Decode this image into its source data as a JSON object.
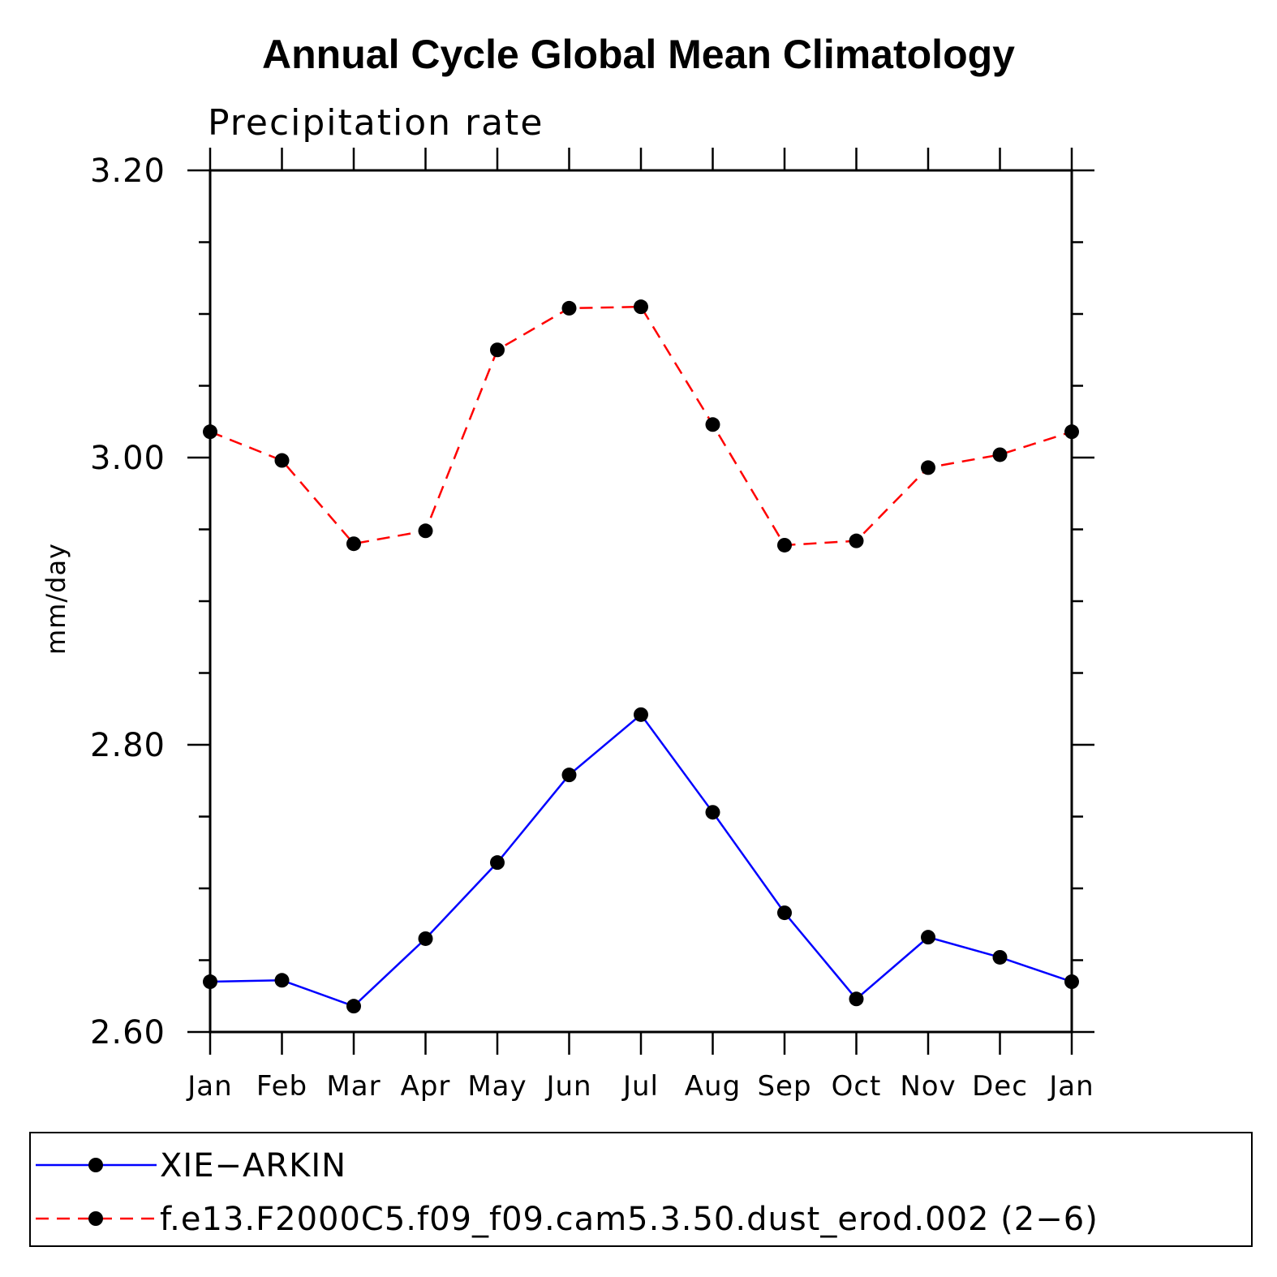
{
  "chart_data": {
    "type": "line",
    "title": "Annual Cycle Global Mean Climatology",
    "subtitle": "Precipitation rate",
    "xlabel": "",
    "ylabel": "mm/day",
    "categories": [
      "Jan",
      "Feb",
      "Mar",
      "Apr",
      "May",
      "Jun",
      "Jul",
      "Aug",
      "Sep",
      "Oct",
      "Nov",
      "Dec",
      "Jan"
    ],
    "ylim": [
      2.6,
      3.2
    ],
    "yticks": [
      "2.60",
      "2.80",
      "3.00",
      "3.20"
    ],
    "y_minor_step": 0.05,
    "grid": false,
    "legend_placement": "bottom",
    "series": [
      {
        "name": "XIE−ARKIN",
        "color": "#0000ff",
        "line_style": "solid",
        "marker": "filled-circle",
        "values": [
          2.635,
          2.636,
          2.618,
          2.665,
          2.718,
          2.779,
          2.821,
          2.753,
          2.683,
          2.623,
          2.666,
          2.652,
          2.635
        ]
      },
      {
        "name": "f.e13.F2000C5.f09_f09.cam5.3.50.dust_erod.002 (2−6)",
        "color": "#ff0000",
        "line_style": "dashed",
        "marker": "filled-circle",
        "values": [
          3.018,
          2.998,
          2.94,
          2.949,
          3.075,
          3.104,
          3.105,
          3.023,
          2.939,
          2.942,
          2.993,
          3.002,
          3.018
        ]
      }
    ]
  }
}
